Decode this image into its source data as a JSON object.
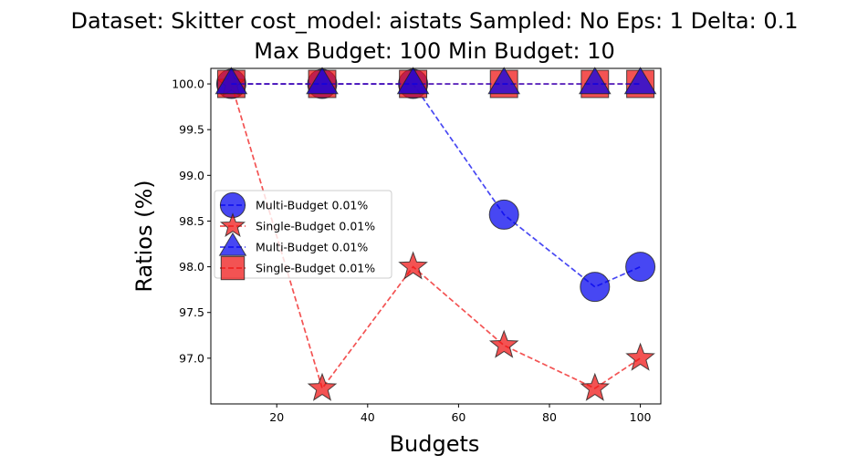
{
  "chart_data": {
    "type": "line",
    "title_line1": "Dataset: Skitter cost_model: aistats Sampled: No Eps: 1 Delta: 0.1",
    "title_line2": "Max Budget: 100 Min Budget: 10",
    "xlabel": "Budgets",
    "ylabel": "Ratios (%)",
    "xlim": [
      5.5,
      104.5
    ],
    "ylim": [
      96.5,
      100.17
    ],
    "xticks": [
      20,
      40,
      60,
      80,
      100
    ],
    "yticks": [
      97.0,
      97.5,
      98.0,
      98.5,
      99.0,
      99.5,
      100.0
    ],
    "grid": false,
    "legend_position": "center-left",
    "series": [
      {
        "name": "Multi-Budget 0.01%",
        "marker": "circle",
        "color": "#0000ee",
        "x": [
          10,
          30,
          50,
          70,
          90,
          100
        ],
        "y": [
          100.0,
          100.0,
          100.0,
          98.57,
          97.78,
          98.0
        ]
      },
      {
        "name": "Single-Budget 0.01%",
        "marker": "star",
        "color": "#ee1111",
        "x": [
          10,
          30,
          50,
          70,
          90,
          100
        ],
        "y": [
          100.0,
          96.67,
          98.0,
          97.14,
          96.67,
          97.0
        ]
      },
      {
        "name": "Multi-Budget 0.01%",
        "marker": "triangle",
        "color": "#0000ee",
        "x": [
          10,
          30,
          50,
          70,
          90,
          100
        ],
        "y": [
          100.0,
          100.0,
          100.0,
          100.0,
          100.0,
          100.0
        ]
      },
      {
        "name": "Single-Budget 0.01%",
        "marker": "square",
        "color": "#ee1111",
        "x": [
          10,
          30,
          50,
          70,
          90,
          100
        ],
        "y": [
          100.0,
          100.0,
          100.0,
          100.0,
          100.0,
          100.0
        ]
      }
    ]
  }
}
